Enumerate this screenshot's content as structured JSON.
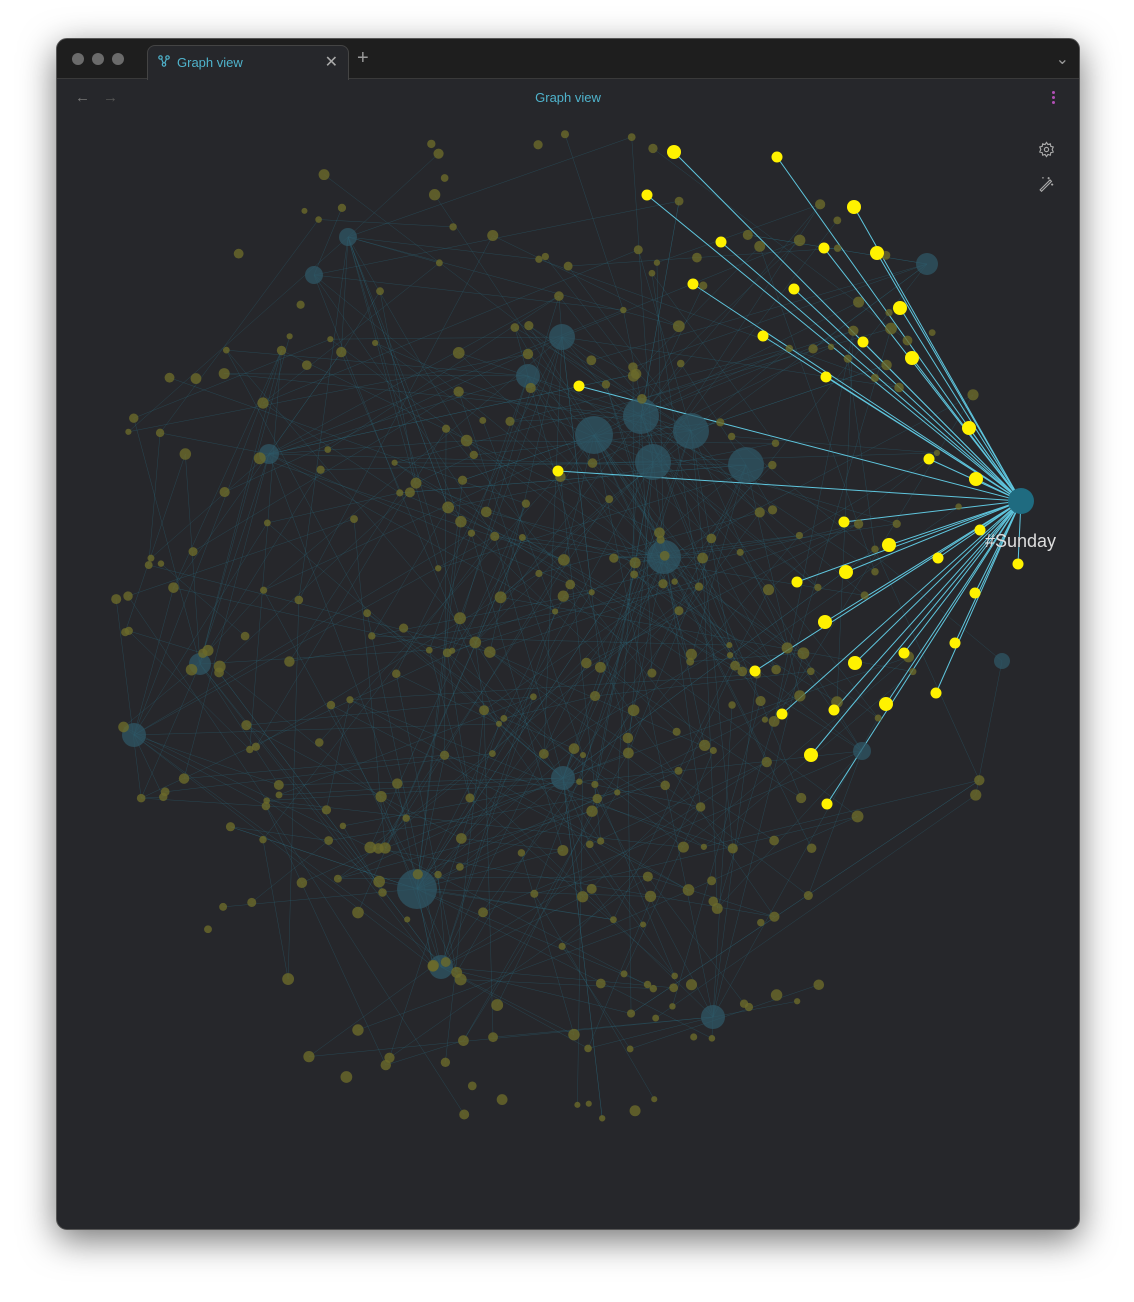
{
  "tab": {
    "title": "Graph view",
    "icon": "graph-icon"
  },
  "header": {
    "title": "Graph view"
  },
  "graph": {
    "focused_node_label": "#Sunday",
    "colors": {
      "node": "#6b6a2a",
      "tag_node": "#2f5766",
      "edge": "#2b6d80",
      "highlight_node": "#fff200",
      "highlight_edge": "#5fc6de",
      "background": "#26272b"
    }
  }
}
